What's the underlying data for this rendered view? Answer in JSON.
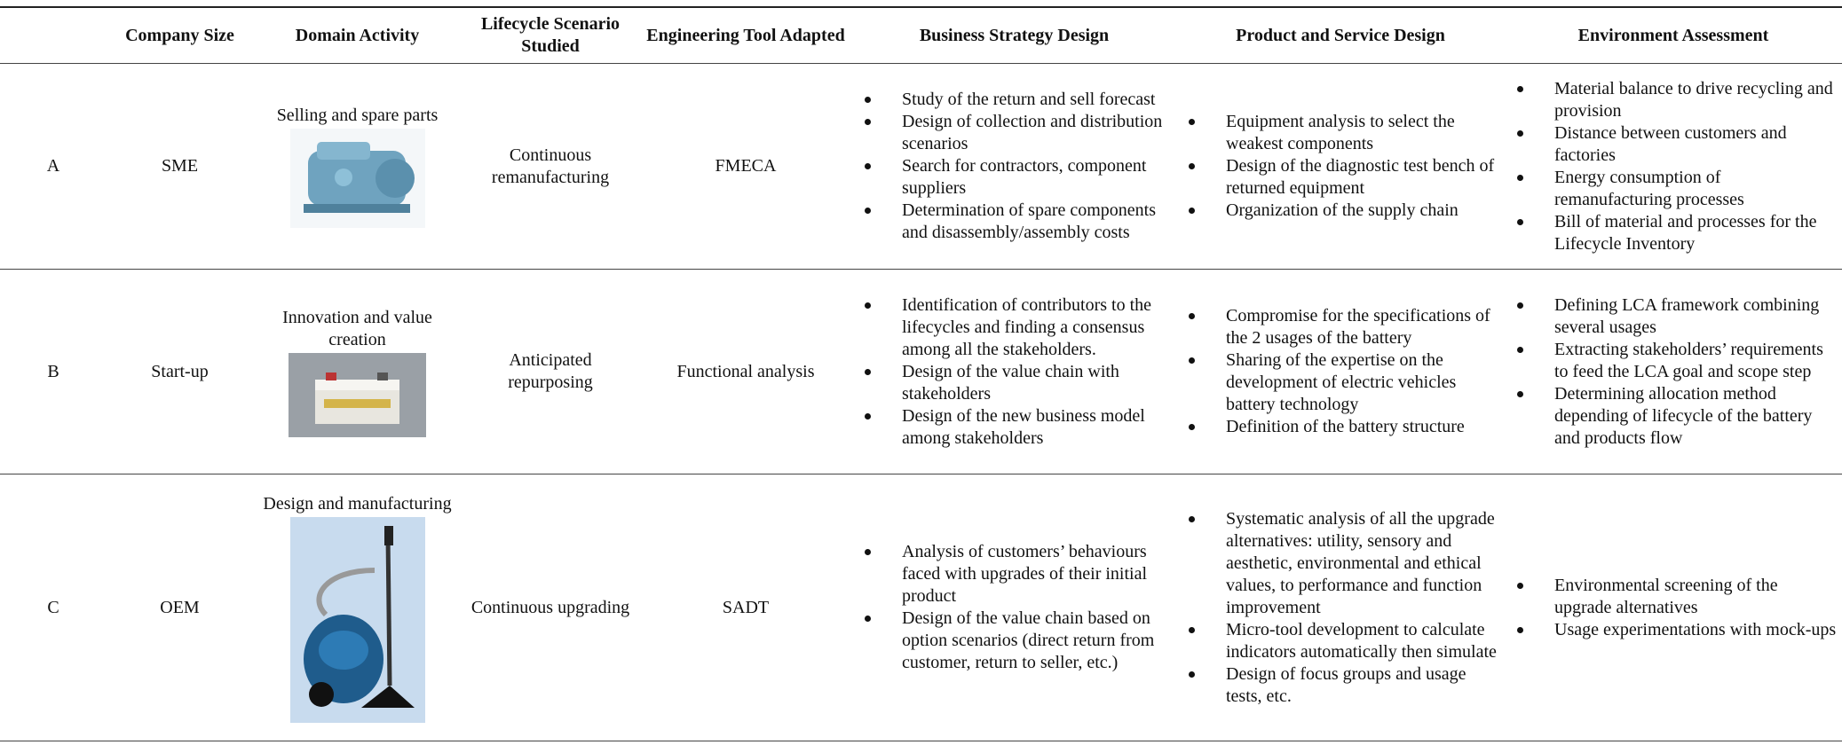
{
  "table": {
    "headers": [
      "Company Size",
      "Domain Activity",
      "Lifecycle Scenario Studied",
      "Engineering Tool Adapted",
      "Business Strategy Design",
      "Product and Service Design",
      "Environment Assessment"
    ],
    "rows": [
      {
        "id": "A",
        "size": "SME",
        "domain": "Selling and spare parts",
        "scenario": "Continuous remanufacturing",
        "tool": "FMECA",
        "business": [
          "Study of the return and sell forecast",
          "Design of collection and distribution scenarios",
          "Search for contractors, component suppliers",
          "Determination of spare components and disassembly/assembly costs"
        ],
        "product": [
          "Equipment analysis to select the weakest components",
          "Design of the diagnostic test bench of returned equipment",
          "Organization of the supply chain"
        ],
        "environment": [
          "Material balance to drive recycling and provision",
          "Distance between customers and factories",
          "Energy consumption of remanufacturing processes",
          "Bill of material and processes for the Lifecycle Inventory"
        ]
      },
      {
        "id": "B",
        "size": "Start-up",
        "domain": "Innovation and value creation",
        "scenario": "Anticipated repurposing",
        "tool": "Functional analysis",
        "business": [
          "Identification of contributors to the lifecycles and finding a consensus among all the stakeholders.",
          "Design of the value chain with stakeholders",
          "Design of the new business model among stakeholders"
        ],
        "product": [
          "Compromise for the specifications of the 2 usages of the battery",
          "Sharing of the expertise on the development of electric vehicles battery technology",
          "Definition of the battery structure"
        ],
        "environment": [
          "Defining LCA framework combining several usages",
          "Extracting stakeholders’ requirements to feed the LCA goal and scope step",
          "Determining allocation method depending of lifecycle of the battery and products flow"
        ]
      },
      {
        "id": "C",
        "size": "OEM",
        "domain": "Design and manufacturing",
        "scenario": "Continuous upgrading",
        "tool": "SADT",
        "business": [
          "Analysis of customers’ behaviours faced with upgrades of their initial product",
          "Design of the value chain based on option scenarios (direct return from customer, return to seller, etc.)"
        ],
        "product": [
          "Systematic analysis of all the upgrade alternatives: utility, sensory and aesthetic, environmental and ethical values, to performance and function improvement",
          "Micro-tool development to calculate indicators automatically then simulate",
          "Design of focus groups and usage tests, etc."
        ],
        "environment": [
          "Environmental screening of the upgrade alternatives",
          "Usage experimentations with mock-ups"
        ]
      }
    ]
  }
}
